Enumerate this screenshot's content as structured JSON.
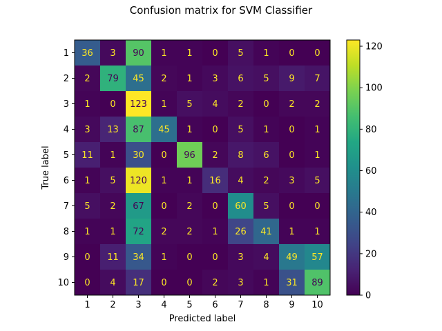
{
  "chart_data": {
    "type": "heatmap",
    "title": "Confusion matrix for SVM Classifier",
    "xlabel": "Predicted label",
    "ylabel": "True label",
    "x_labels": [
      "1",
      "2",
      "3",
      "4",
      "5",
      "6",
      "7",
      "8",
      "9",
      "10"
    ],
    "y_labels": [
      "1",
      "2",
      "3",
      "4",
      "5",
      "6",
      "7",
      "8",
      "9",
      "10"
    ],
    "values": [
      [
        36,
        3,
        90,
        1,
        1,
        0,
        5,
        1,
        0,
        0
      ],
      [
        2,
        79,
        45,
        2,
        1,
        3,
        6,
        5,
        9,
        7
      ],
      [
        1,
        0,
        123,
        1,
        5,
        4,
        2,
        0,
        2,
        2
      ],
      [
        3,
        13,
        87,
        45,
        1,
        0,
        5,
        1,
        0,
        1
      ],
      [
        11,
        1,
        30,
        0,
        96,
        2,
        8,
        6,
        0,
        1
      ],
      [
        1,
        5,
        120,
        1,
        1,
        16,
        4,
        2,
        3,
        5
      ],
      [
        5,
        2,
        67,
        0,
        2,
        0,
        60,
        5,
        0,
        0
      ],
      [
        1,
        1,
        72,
        2,
        2,
        1,
        26,
        41,
        1,
        1
      ],
      [
        0,
        11,
        34,
        1,
        0,
        0,
        3,
        4,
        49,
        57
      ],
      [
        0,
        4,
        17,
        0,
        0,
        2,
        3,
        1,
        31,
        89
      ]
    ],
    "colormap": "viridis",
    "vmin": 0,
    "vmax": 123,
    "colorbar_ticks": [
      0,
      20,
      40,
      60,
      80,
      100,
      120
    ],
    "text_color_dark": "#440154",
    "text_color_light": "#fde725",
    "grid": false
  }
}
